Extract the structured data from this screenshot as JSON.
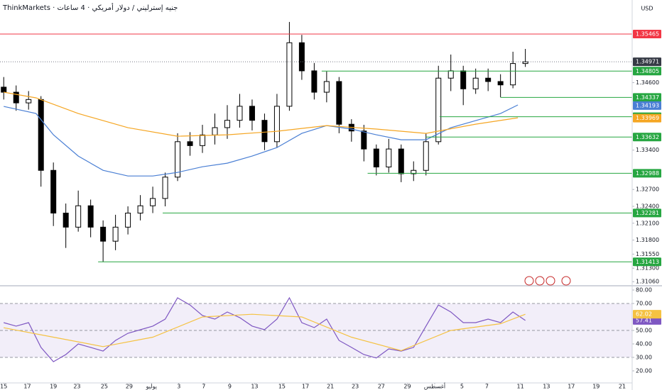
{
  "chart_data": [
    {
      "type": "candlestick",
      "title": "ThinkMarkets · جنيه إسترليني / دولار أمريكي · 4 ساعات",
      "currency": "USD",
      "xlim": [
        -0.3,
        50.6
      ],
      "ylim": [
        1.31,
        1.3607
      ],
      "up_color": "#ffffff",
      "down_color": "#000000",
      "x": [
        0,
        1,
        2,
        3,
        4,
        5,
        6,
        7,
        8,
        9,
        10,
        11,
        12,
        13,
        14,
        15,
        16,
        17,
        18,
        19,
        20,
        21,
        22,
        23,
        24,
        25,
        26,
        27,
        28,
        29,
        30,
        31,
        32,
        33,
        34,
        35,
        36,
        37,
        38,
        39,
        40,
        41,
        42
      ],
      "open": [
        1.3452,
        1.3443,
        1.3424,
        1.343,
        1.3304,
        1.3228,
        1.3203,
        1.3241,
        1.3203,
        1.3178,
        1.3203,
        1.3228,
        1.3241,
        1.3254,
        1.3292,
        1.3355,
        1.3348,
        1.3367,
        1.338,
        1.3393,
        1.3418,
        1.3393,
        1.3355,
        1.3418,
        1.3531,
        1.3481,
        1.3443,
        1.3462,
        1.3386,
        1.3374,
        1.3342,
        1.331,
        1.3342,
        1.3298,
        1.3304,
        1.3355,
        1.3468,
        1.3481,
        1.3449,
        1.3468,
        1.3462,
        1.3456,
        1.3494
      ],
      "high": [
        1.347,
        1.3455,
        1.3445,
        1.3436,
        1.3318,
        1.3245,
        1.3268,
        1.3252,
        1.3215,
        1.3225,
        1.324,
        1.326,
        1.3275,
        1.33,
        1.337,
        1.3372,
        1.3385,
        1.3405,
        1.342,
        1.344,
        1.343,
        1.3405,
        1.344,
        1.3568,
        1.3545,
        1.3495,
        1.348,
        1.347,
        1.3395,
        1.3385,
        1.335,
        1.336,
        1.335,
        1.332,
        1.337,
        1.349,
        1.351,
        1.349,
        1.3485,
        1.3485,
        1.3475,
        1.3515,
        1.352
      ],
      "low": [
        1.343,
        1.341,
        1.3412,
        1.3275,
        1.3205,
        1.3166,
        1.3195,
        1.3185,
        1.3141,
        1.3162,
        1.319,
        1.3215,
        1.3228,
        1.324,
        1.3285,
        1.333,
        1.3335,
        1.335,
        1.336,
        1.338,
        1.3375,
        1.334,
        1.3345,
        1.341,
        1.3465,
        1.343,
        1.3425,
        1.337,
        1.3355,
        1.332,
        1.3295,
        1.33,
        1.3283,
        1.3285,
        1.3295,
        1.335,
        1.3445,
        1.342,
        1.344,
        1.3445,
        1.3434,
        1.345,
        1.3488
      ],
      "close": [
        1.3443,
        1.3424,
        1.343,
        1.3304,
        1.3228,
        1.3203,
        1.3241,
        1.3203,
        1.3178,
        1.3203,
        1.3228,
        1.3241,
        1.3254,
        1.3292,
        1.3355,
        1.3348,
        1.3367,
        1.338,
        1.3393,
        1.3418,
        1.3393,
        1.3355,
        1.3418,
        1.3531,
        1.3481,
        1.3443,
        1.3462,
        1.3386,
        1.3374,
        1.3342,
        1.331,
        1.3342,
        1.3298,
        1.3304,
        1.3355,
        1.3468,
        1.3481,
        1.3449,
        1.3468,
        1.3462,
        1.3456,
        1.3494,
        1.3497
      ],
      "series": [
        {
          "color": "#4a7fd4",
          "x": [
            0,
            2.6,
            4,
            6,
            8,
            10,
            12,
            14,
            16,
            18,
            20,
            22,
            24,
            26,
            28,
            30,
            32,
            34,
            36,
            38,
            40,
            41.4
          ],
          "values": [
            1.34177,
            1.34051,
            1.33673,
            1.33294,
            1.33041,
            1.3294,
            1.3294,
            1.33004,
            1.33104,
            1.33168,
            1.33294,
            1.33445,
            1.33698,
            1.33837,
            1.33774,
            1.33673,
            1.33584,
            1.33584,
            1.33799,
            1.33925,
            1.34051,
            1.34203
          ]
        },
        {
          "color": "#f5a623",
          "x": [
            0,
            2.6,
            6,
            10,
            14,
            18,
            22,
            26,
            30,
            34,
            38,
            41.4
          ],
          "values": [
            1.3443,
            1.34329,
            1.34051,
            1.33799,
            1.33647,
            1.33673,
            1.33736,
            1.33837,
            1.33774,
            1.33698,
            1.33862,
            1.33975
          ]
        }
      ],
      "yticks": [
        {
          "value": 1.346,
          "label": "1.34600"
        },
        {
          "value": 1.334,
          "label": "1.33400"
        },
        {
          "value": 1.327,
          "label": "1.32700"
        },
        {
          "value": 1.324,
          "label": "1.32400"
        },
        {
          "value": 1.321,
          "label": "1.32100"
        },
        {
          "value": 1.318,
          "label": "1.31800"
        },
        {
          "value": 1.3155,
          "label": "1.31550"
        },
        {
          "value": 1.313,
          "label": "1.31300"
        },
        {
          "value": 1.3106,
          "label": "1.31060"
        }
      ],
      "levels": [
        {
          "value": 1.35465,
          "color": "#f23645",
          "from": -0.3,
          "line": "solid"
        },
        {
          "value": 1.34971,
          "color": "#363a45",
          "from": -0.3,
          "line": "dotted"
        },
        {
          "value": 1.34805,
          "color": "#26a641",
          "from": 25.6,
          "line": "solid"
        },
        {
          "value": 1.34337,
          "color": "#26a641",
          "from": 40,
          "line": "solid"
        },
        {
          "value": 1.34193,
          "color": "#4a7fd4",
          "from": 41.4,
          "line": "none"
        },
        {
          "value": 1.33993,
          "color": "#26a641",
          "from": 35.1,
          "line": "solid"
        },
        {
          "value": 1.33969,
          "color": "#f5a623",
          "from": 41.4,
          "line": "none"
        },
        {
          "value": 1.33632,
          "color": "#26a641",
          "from": 34,
          "line": "solid"
        },
        {
          "value": 1.32988,
          "color": "#26a641",
          "from": 29.3,
          "line": "solid"
        },
        {
          "value": 1.32281,
          "color": "#26a641",
          "from": 12.8,
          "line": "solid"
        },
        {
          "value": 1.31413,
          "color": "#26a641",
          "from": 7.6,
          "line": "solid"
        }
      ]
    },
    {
      "type": "line",
      "xlim": [
        -0.3,
        50.6
      ],
      "ylim": [
        11.05,
        82.1
      ],
      "band": [
        30,
        70
      ],
      "guides": [
        70,
        50,
        30
      ],
      "series": [
        {
          "color": "#7e57c2",
          "x": [
            0,
            1,
            2,
            3,
            4,
            5,
            6,
            7,
            8,
            9,
            10,
            11,
            12,
            13,
            14,
            15,
            16,
            17,
            18,
            19,
            20,
            21,
            22,
            23,
            24,
            25,
            26,
            27,
            28,
            29,
            30,
            31,
            32,
            33,
            34,
            35,
            36,
            37,
            38,
            39,
            40,
            41,
            42
          ],
          "values": [
            55.8,
            53.2,
            55.8,
            37.4,
            26.8,
            32.1,
            40,
            37.4,
            34.7,
            42.6,
            47.9,
            50.5,
            53.2,
            58.4,
            74.2,
            68.9,
            61.1,
            58.4,
            63.7,
            59.5,
            53.2,
            50.5,
            58.4,
            74.2,
            55.8,
            52.1,
            58.4,
            42.6,
            37.4,
            32.1,
            29.5,
            36.3,
            34.7,
            37.4,
            53.2,
            68.9,
            63.7,
            55.8,
            55.8,
            58.4,
            55.8,
            63.7,
            57.41
          ]
        },
        {
          "color": "#f5c242",
          "x": [
            0,
            4,
            8,
            12,
            16,
            20,
            24,
            28,
            32,
            36,
            40,
            42
          ],
          "values": [
            52,
            45,
            38,
            45,
            60,
            62,
            60,
            45,
            35,
            50,
            55,
            62.02
          ]
        }
      ],
      "yticks": [
        {
          "value": 80,
          "label": "80.00"
        },
        {
          "value": 70,
          "label": "70.00"
        },
        {
          "value": 50,
          "label": "50.00"
        },
        {
          "value": 40,
          "label": "40.00"
        },
        {
          "value": 30,
          "label": "30.00"
        },
        {
          "value": 20,
          "label": "20.00"
        }
      ],
      "xticks": [
        {
          "value": 0,
          "label": "15"
        },
        {
          "value": 1.9,
          "label": "17"
        },
        {
          "value": 4,
          "label": "19"
        },
        {
          "value": 5.9,
          "label": "23"
        },
        {
          "value": 8.1,
          "label": "25"
        },
        {
          "value": 10.1,
          "label": "29"
        },
        {
          "value": 11.9,
          "label": "يوليو"
        },
        {
          "value": 14.1,
          "label": "3"
        },
        {
          "value": 16.1,
          "label": "7"
        },
        {
          "value": 18.2,
          "label": "9"
        },
        {
          "value": 20.2,
          "label": "13"
        },
        {
          "value": 22.4,
          "label": "15"
        },
        {
          "value": 24.3,
          "label": "17"
        },
        {
          "value": 26.3,
          "label": "21"
        },
        {
          "value": 28.3,
          "label": "23"
        },
        {
          "value": 30.4,
          "label": "27"
        },
        {
          "value": 32.5,
          "label": "29"
        },
        {
          "value": 34.7,
          "label": "أغسطس"
        },
        {
          "value": 36.9,
          "label": "5"
        },
        {
          "value": 38.9,
          "label": "7"
        },
        {
          "value": 41.6,
          "label": "11"
        },
        {
          "value": 43.7,
          "label": "13"
        },
        {
          "value": 45.7,
          "label": "17"
        },
        {
          "value": 47.7,
          "label": "19"
        },
        {
          "value": 49.8,
          "label": "21"
        }
      ]
    }
  ]
}
